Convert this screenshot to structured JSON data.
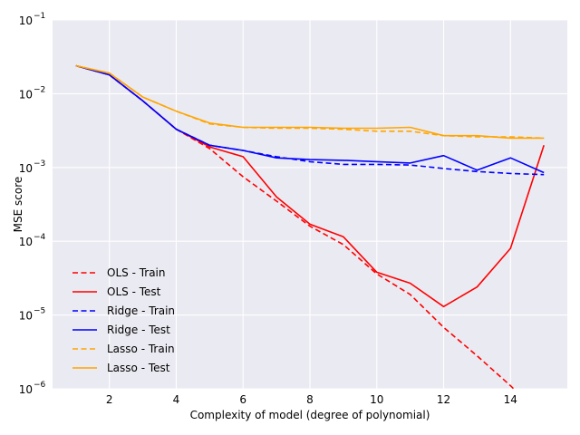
{
  "chart_data": {
    "type": "line",
    "title": "",
    "xlabel": "Complexity of model (degree of polynomial)",
    "ylabel": "MSE score",
    "xlim": [
      0.3,
      15.7
    ],
    "ylim": [
      1e-06,
      0.1
    ],
    "yscale": "log",
    "grid": true,
    "background": "#eaeaf2",
    "legend_position": "lower-left",
    "x_ticks": [
      2,
      4,
      6,
      8,
      10,
      12,
      14
    ],
    "y_ticks": [
      {
        "value": 1e-06,
        "base": "10",
        "exp": "−6"
      },
      {
        "value": 1e-05,
        "base": "10",
        "exp": "−5"
      },
      {
        "value": 0.0001,
        "base": "10",
        "exp": "−4"
      },
      {
        "value": 0.001,
        "base": "10",
        "exp": "−3"
      },
      {
        "value": 0.01,
        "base": "10",
        "exp": "−2"
      },
      {
        "value": 0.1,
        "base": "10",
        "exp": "−1"
      }
    ],
    "x": [
      1,
      2,
      3,
      4,
      5,
      6,
      7,
      8,
      9,
      10,
      11,
      12,
      13,
      14,
      15
    ],
    "series": [
      {
        "name": "OLS - Train",
        "color": "#ff0000",
        "dash": true,
        "values": [
          0.024,
          0.018,
          0.008,
          0.0033,
          0.0018,
          0.00075,
          0.00035,
          0.00016,
          9e-05,
          3.6e-05,
          1.9e-05,
          6.8e-06,
          2.8e-06,
          1.1e-06,
          4e-07
        ]
      },
      {
        "name": "OLS - Test",
        "color": "#ff0000",
        "dash": false,
        "values": [
          0.024,
          0.018,
          0.008,
          0.0033,
          0.0019,
          0.0014,
          0.0004,
          0.00017,
          0.000115,
          3.8e-05,
          2.7e-05,
          1.3e-05,
          2.4e-05,
          8e-05,
          0.002
        ]
      },
      {
        "name": "Ridge - Train",
        "color": "#0000ff",
        "dash": true,
        "values": [
          0.024,
          0.018,
          0.008,
          0.0033,
          0.002,
          0.0017,
          0.0014,
          0.0012,
          0.0011,
          0.0011,
          0.00108,
          0.00097,
          0.00088,
          0.00083,
          0.0008
        ]
      },
      {
        "name": "Ridge - Test",
        "color": "#0000ff",
        "dash": false,
        "values": [
          0.024,
          0.018,
          0.008,
          0.0033,
          0.002,
          0.0017,
          0.00135,
          0.00128,
          0.00125,
          0.0012,
          0.00115,
          0.00145,
          0.00092,
          0.00135,
          0.00085
        ]
      },
      {
        "name": "Lasso - Train",
        "color": "#ffa500",
        "dash": true,
        "values": [
          0.024,
          0.019,
          0.009,
          0.0058,
          0.0039,
          0.0035,
          0.0034,
          0.0034,
          0.0033,
          0.0031,
          0.0031,
          0.0027,
          0.0026,
          0.0026,
          0.0025
        ]
      },
      {
        "name": "Lasso - Test",
        "color": "#ffa500",
        "dash": false,
        "values": [
          0.024,
          0.019,
          0.009,
          0.0058,
          0.004,
          0.0035,
          0.0035,
          0.0035,
          0.0034,
          0.0034,
          0.0035,
          0.0027,
          0.0027,
          0.0025,
          0.0025
        ]
      }
    ]
  }
}
